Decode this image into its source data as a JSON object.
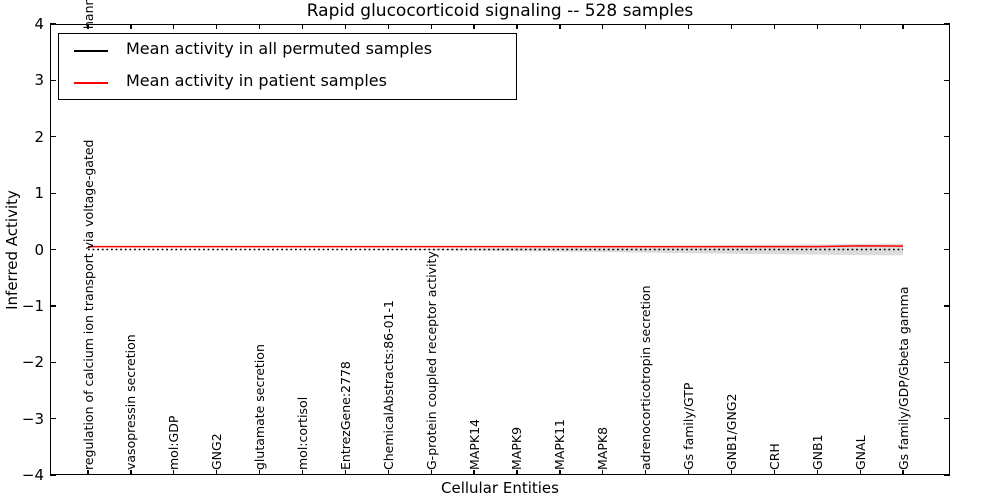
{
  "title": "Rapid glucocorticoid signaling -- 528 samples",
  "axes": {
    "x_label": "Cellular Entities",
    "y_label": "Inferred Activity",
    "y_tick_labels": [
      "4",
      "3",
      "2",
      "1",
      "0",
      "−1",
      "−2",
      "−3",
      "−4"
    ],
    "x_first_label_top_fragment": "hann"
  },
  "legend": {
    "entries": [
      {
        "label": "Mean activity in all permuted samples",
        "color": "#000000"
      },
      {
        "label": "Mean activity in patient samples",
        "color": "#ff0000"
      }
    ],
    "position": "upper left"
  },
  "colors": {
    "permuted_line": "#000000",
    "patient_line": "#ff0000",
    "band": "#dcdcdc",
    "frame": "#000000",
    "background": "#ffffff",
    "text": "#000000"
  },
  "chart_data": {
    "type": "line",
    "title": "Rapid glucocorticoid signaling -- 528 samples",
    "xlabel": "Cellular Entities",
    "ylabel": "Inferred Activity",
    "ylim": [
      -4,
      4
    ],
    "grid": false,
    "legend_position": "upper left",
    "categories": [
      "regulation of calcium ion transport via voltage-gated",
      "vasopressin secretion",
      "mol:GDP",
      "GNG2",
      "glutamate secretion",
      "mol:cortisol",
      "EntrezGene:2778",
      "ChemicalAbstracts:86-01-1",
      "G-protein coupled receptor activity",
      "MAPK14",
      "MAPK9",
      "MAPK11",
      "MAPK8",
      "adrenocorticotropin secretion",
      "Gs family/GTP",
      "GNB1/GNG2",
      "CRH",
      "GNB1",
      "GNAL",
      "Gs family/GDP/Gbeta gamma"
    ],
    "series": [
      {
        "name": "Mean activity in all permuted samples",
        "color": "#000000",
        "style": "dotted",
        "values": [
          0,
          0,
          0,
          0,
          0,
          0,
          0,
          0,
          0,
          0,
          0,
          0,
          0,
          0,
          0,
          0,
          0,
          0,
          0,
          0
        ]
      },
      {
        "name": "Mean activity in patient samples",
        "color": "#ff0000",
        "style": "solid",
        "values": [
          0.05,
          0.05,
          0.05,
          0.05,
          0.05,
          0.05,
          0.05,
          0.05,
          0.05,
          0.05,
          0.05,
          0.05,
          0.05,
          0.05,
          0.05,
          0.05,
          0.05,
          0.05,
          0.065,
          0.06
        ]
      }
    ],
    "shaded_band": {
      "color": "#dcdcdc",
      "center": 0,
      "half_widths": [
        0,
        0,
        0,
        0,
        0,
        0,
        0,
        0.005,
        0.012,
        0.02,
        0.028,
        0.036,
        0.045,
        0.055,
        0.065,
        0.075,
        0.085,
        0.092,
        0.1,
        0.105
      ]
    }
  }
}
